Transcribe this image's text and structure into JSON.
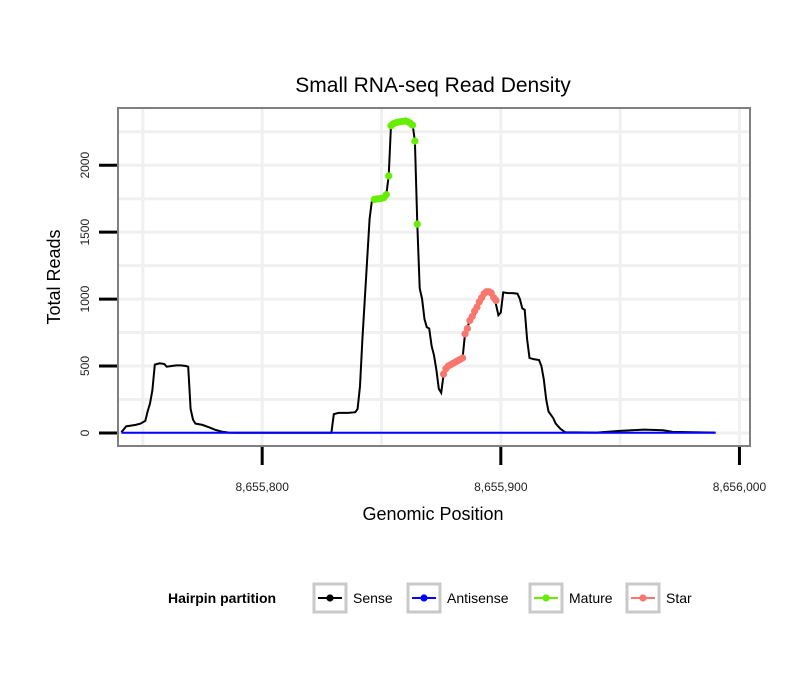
{
  "chart_data": {
    "type": "line",
    "title": "Small RNA-seq Read Density",
    "xlabel": "Genomic Position",
    "ylabel": "Total Reads",
    "xlim": [
      8655740,
      8656004
    ],
    "ylim": [
      -90,
      2420
    ],
    "x_ticks": [
      8655800,
      8655900,
      8656000
    ],
    "x_tick_labels": [
      "8,655,800",
      "8,655,900",
      "8,656,000"
    ],
    "y_ticks": [
      0,
      500,
      1000,
      1500,
      2000
    ],
    "y_tick_labels": [
      "0",
      "500",
      "1000",
      "1500",
      "2000"
    ],
    "grid": true,
    "legend": {
      "title": "Hairpin partition",
      "position": "bottom",
      "entries": [
        "Sense",
        "Antisense",
        "Mature",
        "Star"
      ]
    },
    "colors": {
      "Sense": "#000000",
      "Antisense": "#0000ff",
      "Mature": "#66ee00",
      "Star": "#f8766d"
    },
    "series": [
      {
        "name": "Sense",
        "style": "line",
        "points": [
          [
            8655741,
            5
          ],
          [
            8655743,
            50
          ],
          [
            8655745,
            55
          ],
          [
            8655747,
            60
          ],
          [
            8655749,
            70
          ],
          [
            8655751,
            90
          ],
          [
            8655752,
            160
          ],
          [
            8655753,
            220
          ],
          [
            8655754,
            320
          ],
          [
            8655755,
            510
          ],
          [
            8655757,
            520
          ],
          [
            8655759,
            515
          ],
          [
            8655760,
            495
          ],
          [
            8655762,
            500
          ],
          [
            8655764,
            505
          ],
          [
            8655766,
            505
          ],
          [
            8655768,
            500
          ],
          [
            8655769,
            495
          ],
          [
            8655770,
            180
          ],
          [
            8655771,
            100
          ],
          [
            8655772,
            70
          ],
          [
            8655775,
            60
          ],
          [
            8655778,
            40
          ],
          [
            8655780,
            25
          ],
          [
            8655783,
            10
          ],
          [
            8655786,
            3
          ],
          [
            8655790,
            2
          ],
          [
            8655810,
            1
          ],
          [
            8655829,
            1
          ],
          [
            8655830,
            140
          ],
          [
            8655832,
            150
          ],
          [
            8655836,
            150
          ],
          [
            8655839,
            155
          ],
          [
            8655840,
            180
          ],
          [
            8655841,
            350
          ],
          [
            8655842,
            700
          ],
          [
            8655843,
            1000
          ],
          [
            8655844,
            1300
          ],
          [
            8655845,
            1600
          ],
          [
            8655846,
            1740
          ],
          [
            8655848,
            1755
          ],
          [
            8655850,
            1760
          ],
          [
            8655852,
            1780
          ],
          [
            8655853,
            1920
          ],
          [
            8655854,
            2300
          ],
          [
            8655856,
            2325
          ],
          [
            8655858,
            2330
          ],
          [
            8655860,
            2330
          ],
          [
            8655862,
            2320
          ],
          [
            8655863,
            2310
          ],
          [
            8655864,
            2180
          ],
          [
            8655865,
            1560
          ],
          [
            8655866,
            1080
          ],
          [
            8655867,
            1000
          ],
          [
            8655868,
            850
          ],
          [
            8655869,
            790
          ],
          [
            8655870,
            780
          ],
          [
            8655871,
            650
          ],
          [
            8655872,
            580
          ],
          [
            8655873,
            470
          ],
          [
            8655874,
            330
          ],
          [
            8655875,
            300
          ],
          [
            8655876,
            430
          ],
          [
            8655878,
            490
          ],
          [
            8655880,
            520
          ],
          [
            8655882,
            540
          ],
          [
            8655884,
            560
          ],
          [
            8655885,
            740
          ],
          [
            8655887,
            840
          ],
          [
            8655889,
            880
          ],
          [
            8655890,
            930
          ],
          [
            8655891,
            960
          ],
          [
            8655893,
            1040
          ],
          [
            8655894,
            1060
          ],
          [
            8655896,
            1050
          ],
          [
            8655897,
            1000
          ],
          [
            8655898,
            960
          ],
          [
            8655899,
            880
          ],
          [
            8655900,
            900
          ],
          [
            8655901,
            1050
          ],
          [
            8655903,
            1045
          ],
          [
            8655905,
            1045
          ],
          [
            8655907,
            1040
          ],
          [
            8655908,
            1000
          ],
          [
            8655909,
            930
          ],
          [
            8655910,
            920
          ],
          [
            8655911,
            700
          ],
          [
            8655912,
            560
          ],
          [
            8655914,
            550
          ],
          [
            8655916,
            545
          ],
          [
            8655917,
            500
          ],
          [
            8655918,
            400
          ],
          [
            8655919,
            250
          ],
          [
            8655920,
            160
          ],
          [
            8655922,
            110
          ],
          [
            8655923,
            70
          ],
          [
            8655925,
            30
          ],
          [
            8655927,
            5
          ],
          [
            8655940,
            3
          ],
          [
            8655950,
            15
          ],
          [
            8655960,
            25
          ],
          [
            8655968,
            20
          ],
          [
            8655972,
            8
          ],
          [
            8655990,
            3
          ]
        ]
      },
      {
        "name": "Antisense",
        "style": "line",
        "points": [
          [
            8655741,
            2
          ],
          [
            8655990,
            2
          ]
        ]
      },
      {
        "name": "Mature",
        "style": "points",
        "points": [
          [
            8655847,
            1745
          ],
          [
            8655848,
            1748
          ],
          [
            8655849,
            1750
          ],
          [
            8655850,
            1752
          ],
          [
            8655851,
            1758
          ],
          [
            8655852,
            1780
          ],
          [
            8655853,
            1920
          ],
          [
            8655854,
            2295
          ],
          [
            8655855,
            2310
          ],
          [
            8655856,
            2318
          ],
          [
            8655857,
            2322
          ],
          [
            8655858,
            2325
          ],
          [
            8655859,
            2328
          ],
          [
            8655860,
            2330
          ],
          [
            8655861,
            2325
          ],
          [
            8655862,
            2315
          ],
          [
            8655863,
            2300
          ],
          [
            8655864,
            2180
          ],
          [
            8655865,
            1560
          ]
        ]
      },
      {
        "name": "Star",
        "style": "points",
        "points": [
          [
            8655876,
            440
          ],
          [
            8655877,
            480
          ],
          [
            8655878,
            500
          ],
          [
            8655879,
            510
          ],
          [
            8655880,
            520
          ],
          [
            8655881,
            530
          ],
          [
            8655882,
            540
          ],
          [
            8655883,
            550
          ],
          [
            8655884,
            560
          ],
          [
            8655885,
            740
          ],
          [
            8655886,
            780
          ],
          [
            8655887,
            840
          ],
          [
            8655888,
            870
          ],
          [
            8655889,
            910
          ],
          [
            8655890,
            940
          ],
          [
            8655891,
            980
          ],
          [
            8655892,
            1010
          ],
          [
            8655893,
            1040
          ],
          [
            8655894,
            1055
          ],
          [
            8655895,
            1055
          ],
          [
            8655896,
            1045
          ],
          [
            8655897,
            1010
          ],
          [
            8655898,
            990
          ]
        ]
      }
    ]
  }
}
